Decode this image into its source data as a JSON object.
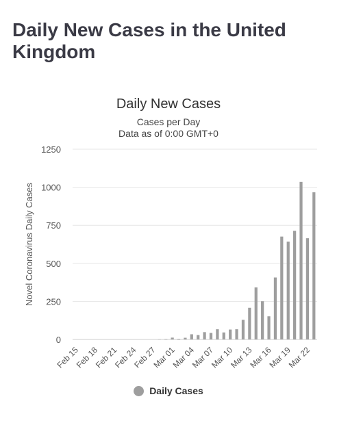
{
  "page": {
    "title": "Daily New Cases in the United Kingdom"
  },
  "chart_data": {
    "type": "bar",
    "title": "Daily New Cases",
    "subtitle_lines": [
      "Cases per Day",
      "Data as of 0:00 GMT+0"
    ],
    "ylabel": "Novel Coronavirus Daily Cases",
    "xlabel": "",
    "ylim": [
      0,
      1250
    ],
    "yticks": [
      0,
      250,
      500,
      750,
      1000,
      1250
    ],
    "grid": true,
    "legend": "bottom",
    "bar_color": "#9e9e9e",
    "series": [
      {
        "name": "Daily Cases"
      }
    ],
    "x_tick_labels": [
      "Feb 15",
      "Feb 18",
      "Feb 21",
      "Feb 24",
      "Feb 27",
      "Mar 01",
      "Mar 04",
      "Mar 07",
      "Mar 10",
      "Mar 13",
      "Mar 16",
      "Mar 19",
      "Mar 22"
    ],
    "categories": [
      "Feb 15",
      "Feb 16",
      "Feb 17",
      "Feb 18",
      "Feb 19",
      "Feb 20",
      "Feb 21",
      "Feb 22",
      "Feb 23",
      "Feb 24",
      "Feb 25",
      "Feb 26",
      "Feb 27",
      "Feb 28",
      "Feb 29",
      "Mar 01",
      "Mar 02",
      "Mar 03",
      "Mar 04",
      "Mar 05",
      "Mar 06",
      "Mar 07",
      "Mar 08",
      "Mar 09",
      "Mar 10",
      "Mar 11",
      "Mar 12",
      "Mar 13",
      "Mar 14",
      "Mar 15",
      "Mar 16",
      "Mar 17",
      "Mar 18",
      "Mar 19",
      "Mar 20",
      "Mar 21",
      "Mar 22",
      "Mar 23"
    ],
    "values": [
      0,
      0,
      0,
      0,
      0,
      0,
      0,
      0,
      0,
      0,
      0,
      0,
      0,
      2,
      3,
      12,
      4,
      11,
      34,
      29,
      48,
      43,
      67,
      46,
      65,
      67,
      129,
      208,
      342,
      251,
      152,
      407,
      676,
      643,
      714,
      1035,
      665,
      967
    ]
  }
}
